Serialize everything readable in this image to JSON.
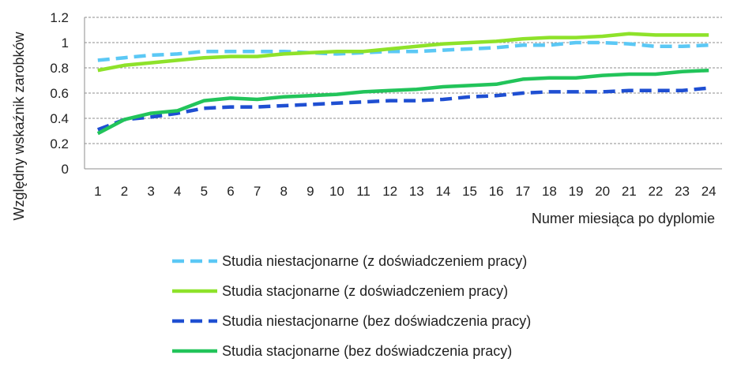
{
  "chart_data": {
    "type": "line",
    "xlabel": "Numer miesiąca po dyplomie",
    "ylabel": "Względny wskaźnik zarobków",
    "ylim": [
      0,
      1.2
    ],
    "yticks": [
      "0",
      "0.2",
      "0.4",
      "0.6",
      "0.8",
      "1",
      "1.2"
    ],
    "x": [
      1,
      2,
      3,
      4,
      5,
      6,
      7,
      8,
      9,
      10,
      11,
      12,
      13,
      14,
      15,
      16,
      17,
      18,
      19,
      20,
      21,
      22,
      23,
      24
    ],
    "grid": "horizontal dashed",
    "legend_position": "bottom",
    "series": [
      {
        "name": "Studia niestacjonarne (z doświadczeniem pracy)",
        "color": "#5bc8f5",
        "dash": "dashed",
        "values": [
          0.86,
          0.88,
          0.9,
          0.91,
          0.93,
          0.93,
          0.93,
          0.93,
          0.92,
          0.91,
          0.92,
          0.93,
          0.93,
          0.94,
          0.95,
          0.96,
          0.98,
          0.98,
          1.0,
          1.0,
          0.99,
          0.97,
          0.97,
          0.98
        ]
      },
      {
        "name": "Studia stacjonarne (z doświadczeniem pracy)",
        "color": "#8ee22a",
        "dash": "solid",
        "values": [
          0.78,
          0.82,
          0.84,
          0.86,
          0.88,
          0.89,
          0.89,
          0.91,
          0.92,
          0.93,
          0.93,
          0.95,
          0.97,
          0.99,
          1.0,
          1.01,
          1.03,
          1.04,
          1.04,
          1.05,
          1.07,
          1.06,
          1.06,
          1.06
        ]
      },
      {
        "name": "Studia niestacjonarne (bez doświadczenia pracy)",
        "color": "#1f4fd2",
        "dash": "dashed",
        "values": [
          0.31,
          0.39,
          0.41,
          0.44,
          0.48,
          0.49,
          0.49,
          0.5,
          0.51,
          0.52,
          0.53,
          0.54,
          0.54,
          0.55,
          0.57,
          0.58,
          0.6,
          0.61,
          0.61,
          0.61,
          0.62,
          0.62,
          0.62,
          0.64
        ]
      },
      {
        "name": "Studia stacjonarne (bez doświadczenia pracy)",
        "color": "#22c45a",
        "dash": "solid",
        "values": [
          0.28,
          0.39,
          0.44,
          0.46,
          0.54,
          0.56,
          0.55,
          0.57,
          0.58,
          0.59,
          0.61,
          0.62,
          0.63,
          0.65,
          0.66,
          0.67,
          0.71,
          0.72,
          0.72,
          0.74,
          0.75,
          0.75,
          0.77,
          0.78
        ]
      }
    ]
  }
}
